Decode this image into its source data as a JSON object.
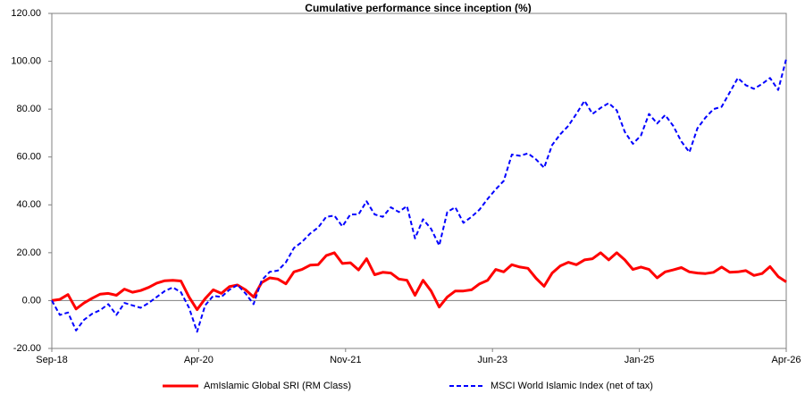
{
  "chart_data": {
    "type": "line",
    "title": "Cumulative performance since inception (%)",
    "xlabel": "",
    "ylabel": "",
    "ylim": [
      -20,
      120
    ],
    "y_ticks": [
      "-20.00",
      "0.00",
      "20.00",
      "40.00",
      "60.00",
      "80.00",
      "100.00",
      "120.00"
    ],
    "y_tick_values": [
      -20,
      0,
      20,
      40,
      60,
      80,
      100,
      120
    ],
    "x_tick_labels": [
      "Sep-18",
      "Apr-20",
      "Nov-21",
      "Jun-23",
      "Jan-25",
      "Apr-26"
    ],
    "grid": false,
    "legend_position": "bottom",
    "series": [
      {
        "name": "AmIslamic Global SRI (RM Class)",
        "color": "#ff0000",
        "style": "solid",
        "values": [
          0,
          0.5,
          2.5,
          -3.5,
          -1,
          1,
          2.7,
          3,
          2.2,
          4.8,
          3.5,
          4.2,
          5.5,
          7.3,
          8.3,
          8.5,
          8.2,
          1.5,
          -3.8,
          0.8,
          4.5,
          3,
          5.8,
          6.5,
          4.5,
          1.5,
          7.5,
          9.5,
          9,
          7,
          12,
          13,
          14.8,
          15,
          18.8,
          20,
          15.5,
          15.8,
          12.8,
          17.5,
          10.8,
          11.8,
          11.5,
          9,
          8.5,
          2.2,
          8.5,
          4,
          -2.7,
          1.5,
          4,
          4,
          4.5,
          7,
          8.5,
          13,
          12,
          15,
          14,
          13.5,
          9.3,
          6,
          11.5,
          14.5,
          16,
          15,
          17,
          17.5,
          20,
          17,
          20,
          17,
          13,
          14,
          13,
          9.5,
          12,
          12.8,
          13.8,
          12,
          11.5,
          11.3,
          11.8,
          14,
          11.8,
          12,
          12.5,
          10.5,
          11.3,
          14.2,
          10,
          7.8
        ]
      },
      {
        "name": "MSCI World Islamic Index (net of tax)",
        "color": "#0000ff",
        "style": "dashed",
        "values": [
          0,
          -6,
          -5,
          -12.5,
          -8,
          -5.5,
          -4,
          -1.5,
          -6,
          -1,
          -2,
          -3,
          -1,
          1.5,
          4,
          5.5,
          3.5,
          -3,
          -13,
          -2,
          2,
          1.5,
          4.5,
          6.5,
          3,
          -1.5,
          8.5,
          12,
          12.5,
          16,
          22,
          24.5,
          28,
          30.5,
          35,
          35.5,
          31,
          36,
          36,
          41.5,
          36,
          35,
          39,
          37,
          39.5,
          26,
          34,
          30,
          23,
          37,
          39,
          32.5,
          35,
          38,
          42.5,
          46.5,
          50,
          61,
          60.5,
          61.5,
          59,
          55.5,
          65,
          69.5,
          73,
          78,
          83.5,
          78,
          80.5,
          82.5,
          79.5,
          70.5,
          65.5,
          69,
          78,
          74,
          77.5,
          73,
          66.5,
          62,
          72,
          76.5,
          80,
          81,
          87,
          93,
          90,
          88.5,
          90.5,
          93,
          88,
          101
        ]
      }
    ]
  }
}
